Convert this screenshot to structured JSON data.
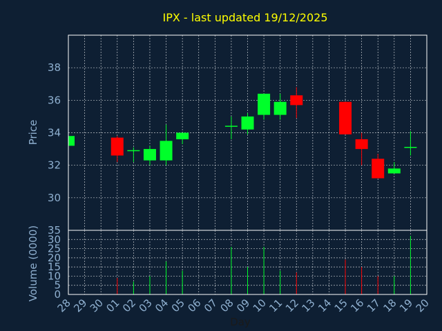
{
  "chart_data": {
    "type": "candlestick",
    "title": "IPX - last updated 19/12/2025",
    "xlabel": "Day",
    "ylabel": "Price",
    "volume_label": "Volume (0000)",
    "categories": [
      "28",
      "29",
      "30",
      "01",
      "02",
      "03",
      "04",
      "05",
      "06",
      "07",
      "08",
      "09",
      "10",
      "11",
      "12",
      "13",
      "14",
      "15",
      "16",
      "17",
      "18",
      "19",
      "20"
    ],
    "price_ylim": [
      28,
      40
    ],
    "price_ticks": [
      30,
      32,
      34,
      36,
      38
    ],
    "volume_ylim": [
      0,
      35
    ],
    "volume_ticks": [
      0,
      5,
      10,
      15,
      20,
      25,
      30,
      35
    ],
    "up_color": "#00ff2a",
    "down_color": "#ff0000",
    "candles": [
      {
        "day": "28",
        "open": 33.2,
        "close": 33.8,
        "high": 33.8,
        "low": 33.2,
        "volume": 0
      },
      {
        "day": "01",
        "open": 33.7,
        "close": 32.6,
        "high": 33.8,
        "low": 32.2,
        "volume": 9
      },
      {
        "day": "02",
        "open": 32.9,
        "close": 32.9,
        "high": 33.1,
        "low": 32.2,
        "volume": 7
      },
      {
        "day": "03",
        "open": 32.3,
        "close": 33.0,
        "high": 33.2,
        "low": 32.0,
        "volume": 10
      },
      {
        "day": "04",
        "open": 32.3,
        "close": 33.5,
        "high": 34.5,
        "low": 32.0,
        "volume": 18
      },
      {
        "day": "05",
        "open": 33.6,
        "close": 34.0,
        "high": 34.0,
        "low": 33.3,
        "volume": 13
      },
      {
        "day": "08",
        "open": 34.4,
        "close": 34.4,
        "high": 35.0,
        "low": 33.6,
        "volume": 26
      },
      {
        "day": "09",
        "open": 34.2,
        "close": 35.0,
        "high": 35.2,
        "low": 33.9,
        "volume": 15
      },
      {
        "day": "10",
        "open": 35.1,
        "close": 36.4,
        "high": 36.4,
        "low": 34.8,
        "volume": 26
      },
      {
        "day": "11",
        "open": 35.1,
        "close": 35.9,
        "high": 36.4,
        "low": 34.8,
        "volume": 13
      },
      {
        "day": "12",
        "open": 36.3,
        "close": 35.7,
        "high": 36.8,
        "low": 34.9,
        "volume": 12
      },
      {
        "day": "15",
        "open": 35.9,
        "close": 33.9,
        "high": 35.9,
        "low": 33.9,
        "volume": 19
      },
      {
        "day": "16",
        "open": 33.6,
        "close": 33.0,
        "high": 34.0,
        "low": 32.0,
        "volume": 15
      },
      {
        "day": "17",
        "open": 32.4,
        "close": 31.2,
        "high": 32.7,
        "low": 31.2,
        "volume": 10
      },
      {
        "day": "18",
        "open": 31.5,
        "close": 31.8,
        "high": 32.2,
        "low": 31.5,
        "volume": 10
      },
      {
        "day": "19",
        "open": 33.1,
        "close": 33.1,
        "high": 34.1,
        "low": 32.6,
        "volume": 32
      }
    ]
  }
}
